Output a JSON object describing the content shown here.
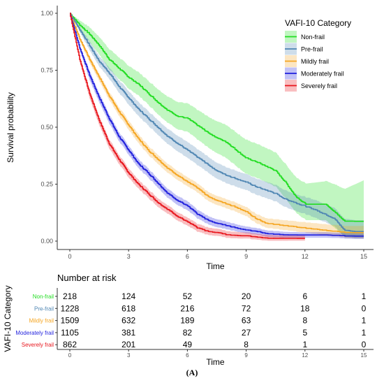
{
  "caption": "(A)",
  "colors": {
    "Non-frail": "#22dd22",
    "Pre-frail": "#4f86b3",
    "Mildly frail": "#f5a623",
    "Moderately frail": "#1f1fdd",
    "Severely frail": "#e8161d"
  },
  "chart_data": {
    "type": "line",
    "title": "",
    "xlabel": "Time",
    "ylabel": "Survival probability",
    "xlim": [
      0,
      15
    ],
    "ylim": [
      0,
      1
    ],
    "x_ticks": [
      "0",
      "3",
      "6",
      "9",
      "12",
      "15"
    ],
    "y_ticks": [
      "0.00",
      "0.25",
      "0.50",
      "0.75",
      "1.00"
    ],
    "grid": false,
    "legend_title": "VAFI-10 Category",
    "legend_position": "top-right",
    "series": [
      {
        "name": "Non-frail",
        "points": [
          [
            0,
            1.0
          ],
          [
            0.5,
            0.95
          ],
          [
            1,
            0.91
          ],
          [
            1.5,
            0.86
          ],
          [
            2,
            0.8
          ],
          [
            2.5,
            0.76
          ],
          [
            3,
            0.72
          ],
          [
            3.5,
            0.69
          ],
          [
            4,
            0.65
          ],
          [
            4.5,
            0.61
          ],
          [
            5,
            0.575
          ],
          [
            5.5,
            0.55
          ],
          [
            6,
            0.54
          ],
          [
            6.5,
            0.51
          ],
          [
            7,
            0.48
          ],
          [
            7.5,
            0.455
          ],
          [
            8,
            0.435
          ],
          [
            8.5,
            0.4
          ],
          [
            9,
            0.365
          ],
          [
            9.5,
            0.35
          ],
          [
            10,
            0.33
          ],
          [
            10.5,
            0.31
          ],
          [
            11,
            0.26
          ],
          [
            11.5,
            0.2
          ],
          [
            12,
            0.165
          ],
          [
            12.5,
            0.165
          ],
          [
            13,
            0.17
          ],
          [
            14,
            0.09
          ],
          [
            14.4,
            0.09
          ],
          [
            15,
            0.09
          ]
        ],
        "band": [
          [
            0,
            0,
            0
          ],
          [
            0.5,
            0.025,
            0.02
          ],
          [
            1,
            0.035,
            0.03
          ],
          [
            2,
            0.045,
            0.045
          ],
          [
            3,
            0.05,
            0.05
          ],
          [
            4,
            0.05,
            0.055
          ],
          [
            5,
            0.055,
            0.06
          ],
          [
            6,
            0.06,
            0.065
          ],
          [
            7,
            0.065,
            0.07
          ],
          [
            8,
            0.07,
            0.075
          ],
          [
            9,
            0.07,
            0.08
          ],
          [
            10,
            0.07,
            0.08
          ],
          [
            11,
            0.07,
            0.08
          ],
          [
            12,
            0.07,
            0.09
          ],
          [
            13,
            0.07,
            0.1
          ],
          [
            14,
            0.07,
            0.14
          ],
          [
            15,
            0.07,
            0.18
          ]
        ]
      },
      {
        "name": "Pre-frail",
        "points": [
          [
            0,
            1.0
          ],
          [
            0.5,
            0.93
          ],
          [
            1,
            0.86
          ],
          [
            1.5,
            0.79
          ],
          [
            2,
            0.74
          ],
          [
            2.5,
            0.68
          ],
          [
            3,
            0.63
          ],
          [
            3.5,
            0.58
          ],
          [
            4,
            0.54
          ],
          [
            4.5,
            0.5
          ],
          [
            5,
            0.46
          ],
          [
            5.5,
            0.43
          ],
          [
            6,
            0.4
          ],
          [
            6.5,
            0.37
          ],
          [
            7,
            0.34
          ],
          [
            7.5,
            0.31
          ],
          [
            8,
            0.29
          ],
          [
            8.5,
            0.275
          ],
          [
            9,
            0.26
          ],
          [
            9.5,
            0.24
          ],
          [
            10,
            0.225
          ],
          [
            10.5,
            0.21
          ],
          [
            11,
            0.185
          ],
          [
            11.5,
            0.17
          ],
          [
            12,
            0.155
          ],
          [
            12.5,
            0.14
          ],
          [
            13,
            0.12
          ],
          [
            13.5,
            0.1
          ],
          [
            14,
            0.05
          ],
          [
            14.5,
            0.045
          ],
          [
            15,
            0.045
          ]
        ],
        "band": [
          [
            0,
            0,
            0
          ],
          [
            1,
            0.02,
            0.02
          ],
          [
            3,
            0.03,
            0.03
          ],
          [
            6,
            0.035,
            0.035
          ],
          [
            9,
            0.035,
            0.035
          ],
          [
            12,
            0.035,
            0.04
          ],
          [
            13,
            0.035,
            0.045
          ],
          [
            14,
            0.03,
            0.05
          ],
          [
            15,
            0.03,
            0.05
          ]
        ]
      },
      {
        "name": "Mildly frail",
        "points": [
          [
            0,
            1.0
          ],
          [
            0.5,
            0.89
          ],
          [
            1,
            0.8
          ],
          [
            1.5,
            0.72
          ],
          [
            2,
            0.64
          ],
          [
            2.5,
            0.57
          ],
          [
            3,
            0.51
          ],
          [
            3.5,
            0.45
          ],
          [
            4,
            0.4
          ],
          [
            4.5,
            0.36
          ],
          [
            5,
            0.32
          ],
          [
            5.5,
            0.29
          ],
          [
            6,
            0.26
          ],
          [
            6.5,
            0.235
          ],
          [
            7,
            0.2
          ],
          [
            7.5,
            0.18
          ],
          [
            8,
            0.165
          ],
          [
            8.5,
            0.15
          ],
          [
            9,
            0.13
          ],
          [
            9.5,
            0.1
          ],
          [
            10,
            0.08
          ],
          [
            10.5,
            0.075
          ],
          [
            11,
            0.07
          ],
          [
            12,
            0.06
          ],
          [
            13,
            0.05
          ],
          [
            14,
            0.04
          ],
          [
            15,
            0.04
          ]
        ],
        "band": [
          [
            0,
            0,
            0
          ],
          [
            1,
            0.015,
            0.015
          ],
          [
            3,
            0.02,
            0.02
          ],
          [
            6,
            0.02,
            0.02
          ],
          [
            9,
            0.02,
            0.02
          ],
          [
            12,
            0.02,
            0.025
          ],
          [
            15,
            0.025,
            0.03
          ]
        ]
      },
      {
        "name": "Moderately frail",
        "points": [
          [
            0,
            1.0
          ],
          [
            0.5,
            0.85
          ],
          [
            1,
            0.73
          ],
          [
            1.5,
            0.63
          ],
          [
            2,
            0.54
          ],
          [
            2.5,
            0.46
          ],
          [
            3,
            0.4
          ],
          [
            3.5,
            0.34
          ],
          [
            4,
            0.3
          ],
          [
            4.5,
            0.255
          ],
          [
            5,
            0.21
          ],
          [
            5.5,
            0.18
          ],
          [
            6,
            0.155
          ],
          [
            6.5,
            0.12
          ],
          [
            7,
            0.095
          ],
          [
            7.5,
            0.08
          ],
          [
            8,
            0.07
          ],
          [
            8.5,
            0.06
          ],
          [
            9,
            0.05
          ],
          [
            9.5,
            0.045
          ],
          [
            10,
            0.035
          ],
          [
            11,
            0.03
          ],
          [
            12,
            0.03
          ],
          [
            12.5,
            0.03
          ],
          [
            13,
            0.03
          ],
          [
            14,
            0.025
          ],
          [
            15,
            0.025
          ]
        ],
        "band": [
          [
            0,
            0,
            0
          ],
          [
            1,
            0.02,
            0.02
          ],
          [
            3,
            0.02,
            0.02
          ],
          [
            6,
            0.02,
            0.02
          ],
          [
            9,
            0.015,
            0.015
          ],
          [
            12,
            0.012,
            0.012
          ],
          [
            15,
            0.012,
            0.012
          ]
        ]
      },
      {
        "name": "Severely frail",
        "points": [
          [
            0,
            1.0
          ],
          [
            0.5,
            0.8
          ],
          [
            1,
            0.65
          ],
          [
            1.5,
            0.53
          ],
          [
            2,
            0.43
          ],
          [
            2.5,
            0.36
          ],
          [
            3,
            0.3
          ],
          [
            3.5,
            0.25
          ],
          [
            4,
            0.21
          ],
          [
            4.5,
            0.17
          ],
          [
            5,
            0.14
          ],
          [
            5.5,
            0.11
          ],
          [
            6,
            0.085
          ],
          [
            6.5,
            0.06
          ],
          [
            7,
            0.045
          ],
          [
            7.5,
            0.04
          ],
          [
            8,
            0.03
          ],
          [
            9,
            0.025
          ],
          [
            10,
            0.015
          ],
          [
            11,
            0.015
          ],
          [
            12,
            0.015
          ]
        ],
        "band": [
          [
            0,
            0,
            0
          ],
          [
            1,
            0.02,
            0.02
          ],
          [
            3,
            0.02,
            0.02
          ],
          [
            6,
            0.018,
            0.018
          ],
          [
            9,
            0.012,
            0.015
          ],
          [
            12,
            0.01,
            0.012
          ]
        ]
      }
    ],
    "risk_table": {
      "title": "Number at risk",
      "ylabel": "VAFI-10 Category",
      "xlabel": "Time",
      "x_ticks": [
        "0",
        "3",
        "6",
        "9",
        "12",
        "15"
      ],
      "rows": [
        {
          "label": "Non-frail",
          "values": [
            "218",
            "124",
            "52",
            "20",
            "6",
            "1"
          ]
        },
        {
          "label": "Pre-frail",
          "values": [
            "1228",
            "618",
            "216",
            "72",
            "18",
            "0"
          ]
        },
        {
          "label": "Mildly frail",
          "values": [
            "1509",
            "632",
            "189",
            "63",
            "8",
            "1"
          ]
        },
        {
          "label": "Moderately frail",
          "values": [
            "1105",
            "381",
            "82",
            "27",
            "5",
            "1"
          ]
        },
        {
          "label": "Severely frail",
          "values": [
            "862",
            "201",
            "49",
            "8",
            "1",
            "0"
          ]
        }
      ]
    }
  }
}
